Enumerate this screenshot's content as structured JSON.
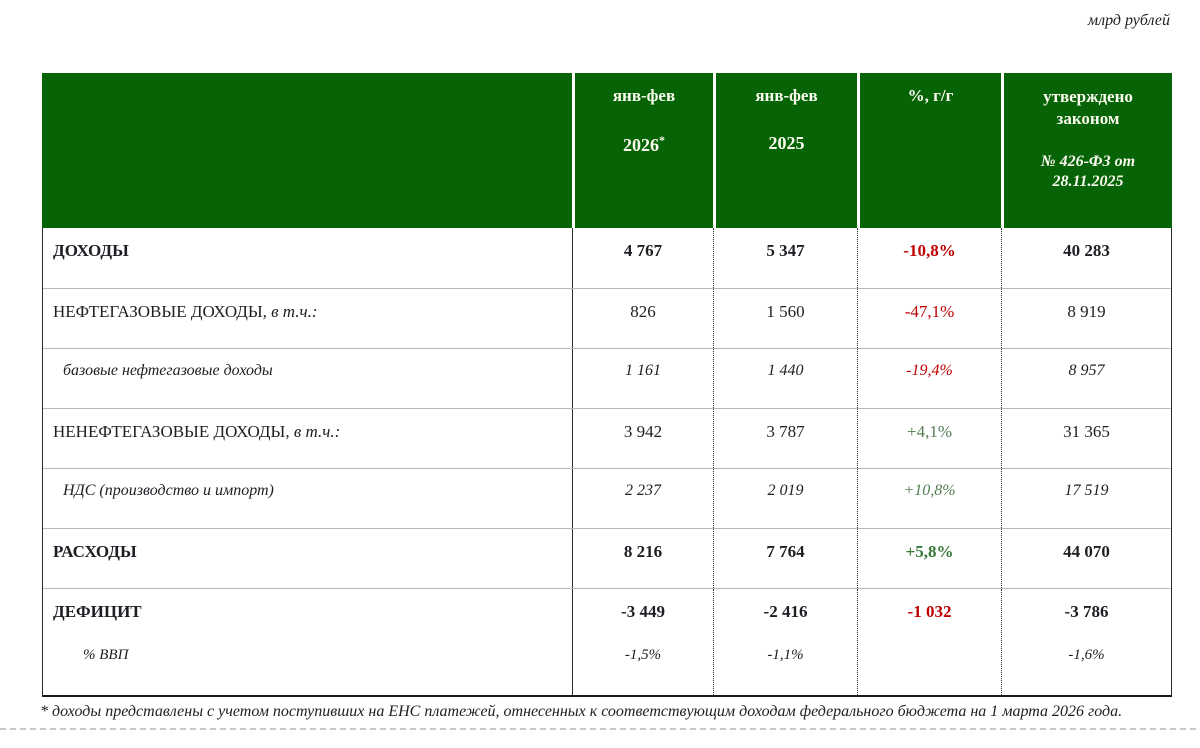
{
  "page": {
    "unit_label": "млрд рублей"
  },
  "colors": {
    "header_green": "#066306",
    "negative_red": "#c00000",
    "positive_green": "#4f7d4f"
  },
  "table": {
    "header": {
      "col_2026": {
        "period": "янв-фев",
        "year": "2026",
        "asterisk": "*"
      },
      "col_2025": {
        "period": "янв-фев",
        "year": "2025"
      },
      "col_yoy": {
        "label": "%, г/г"
      },
      "col_approved": {
        "title": "утверждено законом",
        "law": "№ 426-ФЗ от 28.11.2025"
      }
    },
    "rows": [
      {
        "label": "ДОХОДЫ",
        "suffix": "",
        "v2026": "4 767",
        "v2025": "5 347",
        "yoy": "-10,8%",
        "approved": "40 283"
      },
      {
        "label": "НЕФТЕГАЗОВЫЕ ДОХОДЫ",
        "suffix": ", в т.ч.:",
        "v2026": "826",
        "v2025": "1 560",
        "yoy": "-47,1%",
        "approved": "8 919"
      },
      {
        "label": "базовые нефтегазовые доходы",
        "suffix": "",
        "v2026": "1 161",
        "v2025": "1 440",
        "yoy": "-19,4%",
        "approved": "8 957"
      },
      {
        "label": "НЕНЕФТЕГАЗОВЫЕ ДОХОДЫ",
        "suffix": ", в т.ч.:",
        "v2026": "3 942",
        "v2025": "3 787",
        "yoy": "+4,1%",
        "approved": "31 365"
      },
      {
        "label": "НДС (производство и импорт)",
        "suffix": "",
        "v2026": "2 237",
        "v2025": "2 019",
        "yoy": "+10,8%",
        "approved": "17 519"
      },
      {
        "label": "РАСХОДЫ",
        "suffix": "",
        "v2026": "8 216",
        "v2025": "7 764",
        "yoy": "+5,8%",
        "approved": "44 070"
      },
      {
        "label": "ДЕФИЦИТ",
        "suffix": "",
        "v2026": "-3 449",
        "v2025": "-2 416",
        "yoy": "-1 032",
        "approved": "-3 786"
      },
      {
        "label": "% ВВП",
        "suffix": "",
        "v2026": "-1,5%",
        "v2025": "-1,1%",
        "yoy": "",
        "approved": "-1,6%"
      }
    ]
  },
  "footnote": "* доходы представлены с учетом поступивших на ЕНС платежей, отнесенных к соответствующим доходам федерального бюджета на 1 марта 2026 года."
}
